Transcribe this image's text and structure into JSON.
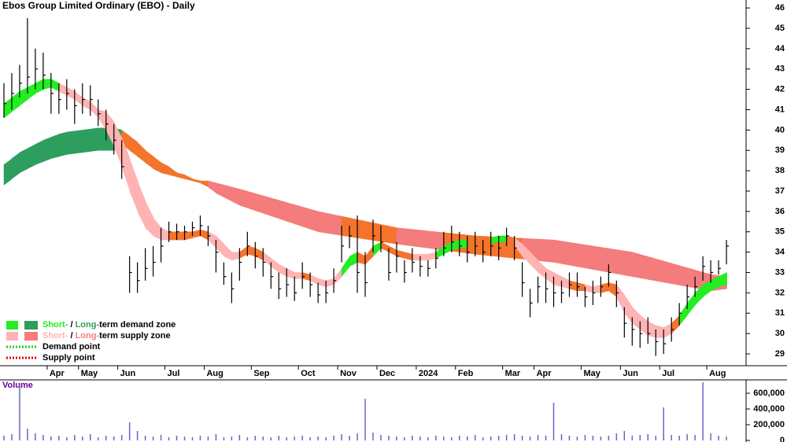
{
  "chart_data": {
    "type": "ohlc",
    "title": "Ebos Group Limited Ordinary (EBO) - Daily",
    "categories": [
      null,
      null,
      null,
      null,
      null,
      null,
      "Apr",
      null,
      null,
      null,
      "May",
      null,
      null,
      null,
      null,
      "Jun",
      null,
      null,
      null,
      null,
      null,
      "Jul",
      null,
      null,
      null,
      null,
      "Aug",
      null,
      null,
      null,
      null,
      null,
      "Sep",
      null,
      null,
      null,
      null,
      null,
      "Oct",
      null,
      null,
      null,
      null,
      "Nov",
      null,
      null,
      null,
      null,
      "Dec",
      null,
      null,
      null,
      null,
      "2024",
      null,
      null,
      null,
      null,
      "Feb",
      null,
      null,
      null,
      null,
      null,
      "Mar",
      null,
      null,
      null,
      "Apr",
      null,
      null,
      null,
      null,
      null,
      "May",
      null,
      null,
      null,
      null,
      "Jun",
      null,
      null,
      null,
      null,
      "Jul",
      null,
      null,
      null,
      null,
      null,
      "Aug",
      null,
      null,
      null,
      null
    ],
    "high": [
      42.3,
      42.8,
      43.2,
      45.5,
      44,
      43.8,
      42.8,
      42.3,
      42.5,
      42,
      42.3,
      42.2,
      41.5,
      41,
      40.3,
      39.5,
      33.8,
      33.5,
      34.2,
      34.3,
      35.2,
      35.5,
      35.4,
      35.3,
      35.5,
      35.8,
      35.3,
      34.6,
      33.5,
      33,
      34.2,
      35,
      34.5,
      34.2,
      33.5,
      33,
      33.2,
      32.8,
      33.5,
      33,
      32.5,
      32.6,
      33.2,
      35.3,
      35.3,
      35.8,
      34,
      35.6,
      35.3,
      34.2,
      34.5,
      33.6,
      34.2,
      33.8,
      33.6,
      34.2,
      35,
      35.3,
      35,
      34.8,
      35,
      34.6,
      35,
      34.8,
      35.2,
      34.8,
      33.5,
      32.2,
      32.8,
      33,
      32.8,
      32.6,
      33,
      33,
      32.3,
      32.6,
      32.8,
      33.4,
      32.6,
      31.3,
      30.8,
      30.6,
      30.8,
      30.2,
      30.2,
      30.8,
      31.5,
      32.4,
      32.8,
      33.8,
      33.6,
      33.6,
      34.6,
      null,
      null
    ],
    "low": [
      40.6,
      41,
      41.6,
      41.8,
      42,
      42,
      40.8,
      40.8,
      41,
      40.3,
      40.8,
      40.7,
      40.2,
      39.5,
      38.8,
      37.6,
      32,
      32,
      32.6,
      32.8,
      33.5,
      34.5,
      34.6,
      34.6,
      34.8,
      34.8,
      34.3,
      33,
      32.4,
      31.5,
      32.6,
      33.8,
      33.2,
      32.8,
      32.2,
      31.7,
      31.8,
      31.6,
      32.2,
      31.8,
      31.5,
      31.5,
      32,
      33.5,
      34.2,
      32,
      31.8,
      34,
      34,
      32.6,
      33,
      32.5,
      33,
      32.8,
      32.8,
      33.2,
      33.8,
      34,
      33.8,
      33.5,
      33.8,
      33.5,
      33.8,
      33.6,
      34.3,
      33.6,
      31.8,
      30.8,
      31.5,
      31.5,
      31.3,
      31.5,
      31.8,
      31.8,
      31.3,
      31.4,
      31.8,
      32.3,
      31.3,
      29.8,
      29.4,
      29.3,
      29.5,
      28.9,
      29,
      29.6,
      30.4,
      31.2,
      31.8,
      32.6,
      32.5,
      32.9,
      33.4,
      null,
      null
    ],
    "close": [
      41.3,
      41.8,
      42.3,
      42.6,
      43,
      42.7,
      41.8,
      41.5,
      41.8,
      41.2,
      41.5,
      41.5,
      40.8,
      40.3,
      39.5,
      38.2,
      33,
      32.6,
      33.2,
      33.5,
      34.3,
      35,
      35,
      35,
      35.2,
      35.3,
      34.8,
      34,
      32.8,
      32.2,
      33.5,
      34.3,
      33.8,
      33.5,
      32.8,
      32.2,
      32.4,
      32,
      32.8,
      32.4,
      31.9,
      32,
      32.6,
      34.3,
      34.8,
      33,
      32.5,
      34.8,
      34.5,
      33,
      33.8,
      33,
      33.5,
      33.3,
      33.2,
      33.7,
      34.2,
      34.5,
      34.3,
      34,
      34.3,
      34,
      34.3,
      34.2,
      34.8,
      34.2,
      32.5,
      31.5,
      32.3,
      32.2,
      32,
      32,
      32.4,
      32.3,
      31.8,
      32,
      32.3,
      33,
      32,
      30.5,
      30.2,
      30,
      30,
      29.6,
      29.5,
      30.2,
      31,
      31.8,
      32.3,
      33.3,
      33,
      33.2,
      34.3,
      null,
      null
    ],
    "bar_color": "#000000",
    "zones": [
      {
        "lower": [
          37.3,
          37.6,
          37.9,
          38.1,
          38.3,
          38.45,
          38.6,
          38.7,
          38.8,
          38.85,
          38.9,
          38.95,
          39,
          39,
          39,
          39.3,
          39.0,
          38.7,
          38.4,
          38.1,
          37.9,
          37.8,
          37.7,
          37.6,
          37.5,
          37.4,
          37.2,
          36.9,
          36.7,
          36.5,
          36.3,
          36.17,
          36.04,
          35.91,
          35.78,
          35.65,
          35.52,
          35.39,
          35.26,
          35.13,
          35.0,
          34.94,
          34.88,
          34.82,
          34.76,
          34.7,
          34.64,
          34.58,
          34.52,
          34.46,
          34.4,
          34.35,
          34.3,
          34.25,
          34.2,
          34.15,
          34.1,
          34.05,
          34.0,
          33.95,
          33.9,
          33.86,
          33.82,
          33.78,
          33.74,
          33.7,
          33.66,
          33.62,
          33.58,
          33.54,
          33.5,
          33.43,
          33.36,
          33.29,
          33.22,
          33.15,
          33.08,
          33.01,
          32.94,
          32.87,
          32.8,
          32.73,
          32.66,
          32.59,
          32.52,
          32.45,
          32.38,
          32.31,
          32.24,
          32.17,
          32.1,
          32.15,
          32.2,
          null,
          null
        ],
        "upper": [
          38.3,
          38.6,
          38.9,
          39.1,
          39.3,
          39.5,
          39.65,
          39.8,
          39.9,
          39.95,
          40,
          40.05,
          40.1,
          40.1,
          40.1,
          40,
          39.7,
          39.4,
          39.0,
          38.7,
          38.4,
          38.2,
          37.9,
          37.8,
          37.6,
          37.5,
          37.5,
          37.4,
          37.3,
          37.2,
          37.1,
          36.99,
          36.88,
          36.77,
          36.66,
          36.55,
          36.44,
          36.33,
          36.22,
          36.11,
          36.0,
          35.92,
          35.84,
          35.76,
          35.68,
          35.6,
          35.52,
          35.44,
          35.36,
          35.28,
          35.2,
          35.16,
          35.12,
          35.08,
          35.04,
          35.0,
          34.96,
          34.92,
          34.88,
          34.84,
          34.8,
          34.78,
          34.76,
          34.74,
          34.72,
          34.7,
          34.68,
          34.66,
          34.64,
          34.62,
          34.6,
          34.54,
          34.48,
          34.42,
          34.36,
          34.3,
          34.24,
          34.18,
          34.12,
          34.06,
          34.0,
          33.89,
          33.78,
          33.67,
          33.56,
          33.45,
          33.34,
          33.23,
          33.12,
          33.01,
          32.9,
          32.85,
          32.8,
          null,
          null
        ],
        "colors": [
          "#2e9e5e",
          "#2e9e5e",
          "#2e9e5e",
          "#2e9e5e",
          "#2e9e5e",
          "#2e9e5e",
          "#2e9e5e",
          "#2e9e5e",
          "#2e9e5e",
          "#2e9e5e",
          "#2e9e5e",
          "#2e9e5e",
          "#2e9e5e",
          "#2e9e5e",
          "#2e9e5e",
          "#f4742c",
          "#f4742c",
          "#f4742c",
          "#f4742c",
          "#f4742c",
          "#f4742c",
          "#f4742c",
          "#f4742c",
          "#f4742c",
          "#f4742c",
          "#f4742c",
          "#f47c7c",
          "#f47c7c",
          "#f47c7c",
          "#f47c7c",
          "#f47c7c",
          "#f47c7c",
          "#f47c7c",
          "#f47c7c",
          "#f47c7c",
          "#f47c7c",
          "#f47c7c",
          "#f47c7c",
          "#f47c7c",
          "#f47c7c",
          "#f47c7c",
          "#f47c7c",
          "#f47c7c",
          "#f4742c",
          "#f4742c",
          "#f4742c",
          "#f4742c",
          "#f4742c",
          "#f4742c",
          "#f4742c",
          "#f47c7c",
          "#f47c7c",
          "#f47c7c",
          "#f47c7c",
          "#f47c7c",
          "#f47c7c",
          "#f4742c",
          "#f4742c",
          "#f4742c",
          "#f4742c",
          "#f4742c",
          "#f4742c",
          "#f4742c",
          "#f4742c",
          "#f4742c",
          "#f4742c",
          "#f47c7c",
          "#f47c7c",
          "#f47c7c",
          "#f47c7c",
          "#f47c7c",
          "#f47c7c",
          "#f47c7c",
          "#f47c7c",
          "#f47c7c",
          "#f47c7c",
          "#f47c7c",
          "#f47c7c",
          "#f47c7c",
          "#f47c7c",
          "#f47c7c",
          "#f47c7c",
          "#f47c7c",
          "#f47c7c",
          "#f47c7c",
          "#f47c7c",
          "#f47c7c",
          "#f47c7c",
          "#f47c7c",
          "#f47c7c",
          "#f47c7c",
          "#f47c7c",
          "#f47c7c",
          null,
          null
        ]
      },
      {
        "lower": [
          40.6,
          40.9,
          41.2,
          41.5,
          41.8,
          42.0,
          42.1,
          41.9,
          41.7,
          41.5,
          41.2,
          41.0,
          40.6,
          40.0,
          39.2,
          38.2,
          37.0,
          36.0,
          35.2,
          34.8,
          34.6,
          34.6,
          34.6,
          34.6,
          34.7,
          34.8,
          34.6,
          34.2,
          33.8,
          33.6,
          33.7,
          33.9,
          33.8,
          33.6,
          33.3,
          33.0,
          32.8,
          32.7,
          32.7,
          32.6,
          32.4,
          32.3,
          32.4,
          32.8,
          33.3,
          33.5,
          33.4,
          33.8,
          34.2,
          34.0,
          33.8,
          33.7,
          33.6,
          33.6,
          33.6,
          33.7,
          33.9,
          34.1,
          34.2,
          34.2,
          34.3,
          34.3,
          34.4,
          34.5,
          34.5,
          34.3,
          33.8,
          33.4,
          33.0,
          32.7,
          32.4,
          32.3,
          32.2,
          32.1,
          32.1,
          32.0,
          32.0,
          32.1,
          31.8,
          31.0,
          30.5,
          30.2,
          29.9,
          29.8,
          29.8,
          30.0,
          30.4,
          30.9,
          31.4,
          31.8,
          32.1,
          32.3,
          32.4,
          null,
          null
        ],
        "upper": [
          41.3,
          41.6,
          41.9,
          42.1,
          42.3,
          42.5,
          42.5,
          42.3,
          42.1,
          41.9,
          41.6,
          41.4,
          41.0,
          40.9,
          40.4,
          39.6,
          38.6,
          37.5,
          36.5,
          35.7,
          35.2,
          35.0,
          35.0,
          35.0,
          35.0,
          35.1,
          35.0,
          34.8,
          34.4,
          34.0,
          34.0,
          34.3,
          34.2,
          34.0,
          33.7,
          33.4,
          33.2,
          33.0,
          33.0,
          32.9,
          32.7,
          32.6,
          32.7,
          33.2,
          33.8,
          34.0,
          33.8,
          34.3,
          34.5,
          34.3,
          34.1,
          34.0,
          33.9,
          33.9,
          33.9,
          34.0,
          34.3,
          34.5,
          34.6,
          34.6,
          34.6,
          34.6,
          34.7,
          34.8,
          34.8,
          34.7,
          34.4,
          34.0,
          33.6,
          33.2,
          33.0,
          32.8,
          32.6,
          32.5,
          32.4,
          32.3,
          32.4,
          32.5,
          32.4,
          31.9,
          31.3,
          30.9,
          30.6,
          30.4,
          30.3,
          30.5,
          30.9,
          31.5,
          32.0,
          32.4,
          32.6,
          32.8,
          33.0,
          null,
          null
        ],
        "colors": [
          "#22ee22",
          "#22ee22",
          "#22ee22",
          "#22ee22",
          "#22ee22",
          "#22ee22",
          "#22ee22",
          "#ffb3b3",
          "#ffb3b3",
          "#ffb3b3",
          "#ffb3b3",
          "#ffb3b3",
          "#ffb3b3",
          "#ffb3b3",
          "#ffb3b3",
          "#ffb3b3",
          "#ffb3b3",
          "#ffb3b3",
          "#ffb3b3",
          "#ffb3b3",
          "#ffb3b3",
          "#f4742c",
          "#f4742c",
          "#f4742c",
          "#f4742c",
          "#f4742c",
          "#ffb3b3",
          "#ffb3b3",
          "#ffb3b3",
          "#ffb3b3",
          "#f4742c",
          "#f4742c",
          "#f4742c",
          "#ffb3b3",
          "#ffb3b3",
          "#ffb3b3",
          "#ffb3b3",
          "#ffb3b3",
          "#f4742c",
          "#ffb3b3",
          "#ffb3b3",
          "#ffb3b3",
          "#ffb3b3",
          "#22ee22",
          "#22ee22",
          "#f4742c",
          "#f4742c",
          "#22ee22",
          "#f4742c",
          "#f4742c",
          "#f4742c",
          "#f4742c",
          "#ffb3b3",
          "#ffb3b3",
          "#ffb3b3",
          "#22ee22",
          "#22ee22",
          "#22ee22",
          "#22ee22",
          "#f4742c",
          "#f4742c",
          "#f4742c",
          "#22ee22",
          "#22ee22",
          "#f4742c",
          "#ffb3b3",
          "#ffb3b3",
          "#ffb3b3",
          "#ffb3b3",
          "#ffb3b3",
          "#ffb3b3",
          "#ffb3b3",
          "#f4742c",
          "#f4742c",
          "#ffb3b3",
          "#ffb3b3",
          "#f4742c",
          "#f4742c",
          "#ffb3b3",
          "#ffb3b3",
          "#ffb3b3",
          "#ffb3b3",
          "#ffb3b3",
          "#ffb3b3",
          "#ffb3b3",
          "#f4742c",
          "#22ee22",
          "#22ee22",
          "#22ee22",
          "#22ee22",
          "#22ee22",
          "#22ee22",
          "#22ee22",
          null,
          null
        ]
      }
    ],
    "ylim": [
      28.42,
      46.39
    ],
    "yticks": [
      29,
      30,
      31,
      32,
      33,
      34,
      35,
      36,
      37,
      38,
      39,
      40,
      41,
      42,
      43,
      44,
      45,
      46
    ],
    "volume": {
      "label": "Volume",
      "label_color": "#660099",
      "color": "#6666cc",
      "values": [
        60000,
        80000,
        700000,
        150000,
        90000,
        70000,
        50000,
        60000,
        40000,
        70000,
        50000,
        80000,
        40000,
        60000,
        50000,
        70000,
        230000,
        120000,
        60000,
        50000,
        70000,
        40000,
        60000,
        50000,
        40000,
        60000,
        50000,
        80000,
        40000,
        50000,
        70000,
        40000,
        60000,
        50000,
        40000,
        60000,
        40000,
        50000,
        60000,
        40000,
        50000,
        40000,
        60000,
        80000,
        60000,
        90000,
        530000,
        100000,
        70000,
        60000,
        50000,
        40000,
        60000,
        50000,
        40000,
        60000,
        50000,
        40000,
        60000,
        50000,
        70000,
        40000,
        50000,
        60000,
        70000,
        80000,
        60000,
        50000,
        70000,
        60000,
        480000,
        80000,
        60000,
        50000,
        70000,
        60000,
        50000,
        60000,
        90000,
        120000,
        60000,
        70000,
        80000,
        60000,
        420000,
        70000,
        60000,
        80000,
        70000,
        740000,
        90000,
        60000,
        50000,
        null,
        null
      ],
      "ylim": [
        -20000,
        770000
      ],
      "yticks": [
        0,
        {
          "value": 200000,
          "label": "200,000"
        },
        {
          "value": 400000,
          "label": "400,000"
        },
        {
          "value": 600000,
          "label": "600,000"
        }
      ]
    },
    "colors": {
      "short_demand": "#22ee22",
      "long_demand": "#2e9e5e",
      "short_supply": "#ffb3b3",
      "long_supply": "#f47c7c",
      "demand_point": "#22cc22",
      "supply_point": "#dd0000"
    },
    "legend": {
      "demand_zone": {
        "short": "Short-",
        "sep": " / ",
        "long": "Long-",
        "rest": "term demand zone"
      },
      "supply_zone": {
        "short": "Short-",
        "sep": " / ",
        "long": "Long-",
        "rest": "term supply zone"
      },
      "demand_point": "Demand point",
      "supply_point": "Supply point"
    }
  }
}
